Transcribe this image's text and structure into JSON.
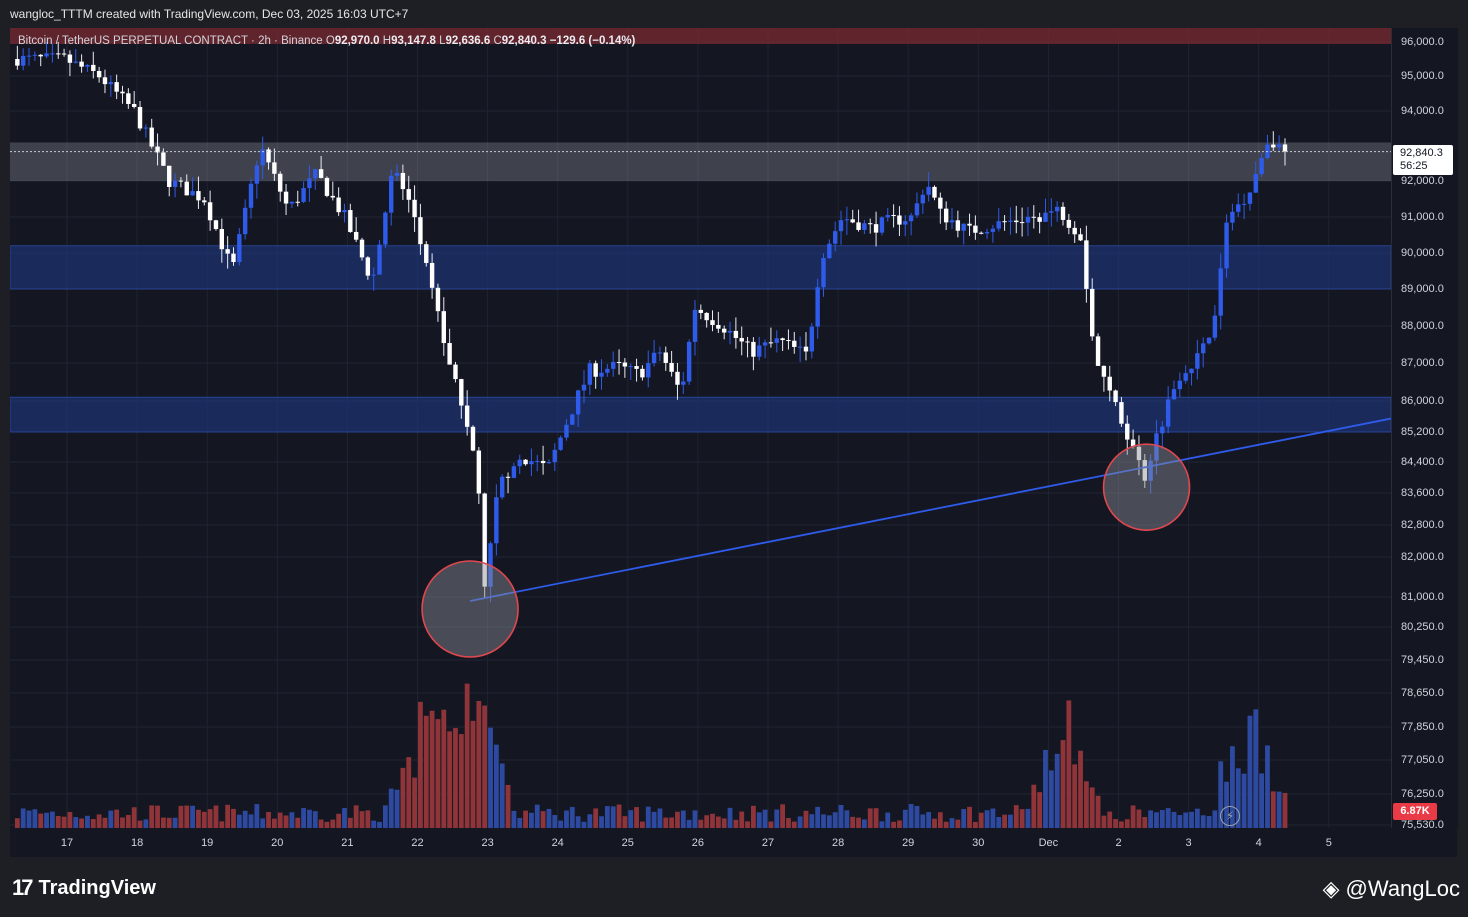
{
  "caption": "wangloc_TTTM created with TradingView.com, Dec 03, 2025 16:03 UTC+7",
  "symbol": {
    "name": "Bitcoin / TetherUS PERPETUAL CONTRACT · 2h · Binance",
    "o_label": "O",
    "o": "92,970.0",
    "h_label": "H",
    "h": "93,147.8",
    "l_label": "L",
    "l": "92,636.6",
    "c_label": "C",
    "c": "92,840.3",
    "change": "−129.6 (−0.14%)"
  },
  "last_price": {
    "price": "92,840.3",
    "countdown": "56:25"
  },
  "volume_label": "6.87K",
  "branding": {
    "logo_text": "TradingView",
    "watermark": "@WangLoc"
  },
  "colors": {
    "up": "#2f5bea",
    "down": "#ffffff",
    "zone": "#1e3a8a",
    "resistance_zone": "#b0b3bd",
    "trendline": "#2f5bea",
    "circle_stroke": "#e0474f",
    "vol_up": "#2d4aa0",
    "vol_down": "#8f3439"
  },
  "chart_data": {
    "type": "candlestick",
    "symbol": "BTCUSDT.P",
    "interval": "2h",
    "exchange": "Binance",
    "y_ticks": [
      "96,000.0",
      "95,000.0",
      "94,000.0",
      "92,000.0",
      "91,000.0",
      "90,000.0",
      "89,000.0",
      "88,000.0",
      "87,000.0",
      "86,000.0",
      "85,200.0",
      "84,400.0",
      "83,600.0",
      "82,800.0",
      "82,000.0",
      "81,000.0",
      "80,250.0",
      "79,450.0",
      "78,650.0",
      "77,850.0",
      "77,050.0",
      "76,250.0",
      "75,530.0"
    ],
    "x_ticks": [
      "17",
      "18",
      "19",
      "20",
      "21",
      "22",
      "23",
      "24",
      "25",
      "26",
      "27",
      "28",
      "29",
      "30",
      "Dec",
      "2",
      "3",
      "4",
      "5"
    ],
    "price_path": [
      [
        0,
        95500
      ],
      [
        0.5,
        95000
      ],
      [
        1,
        94000
      ],
      [
        1.5,
        92000
      ],
      [
        2,
        91500
      ],
      [
        2.4,
        89500
      ],
      [
        2.8,
        93000
      ],
      [
        3.2,
        91200
      ],
      [
        3.6,
        92200
      ],
      [
        4,
        91000
      ],
      [
        4.4,
        89200
      ],
      [
        4.7,
        92400
      ],
      [
        5,
        91000
      ],
      [
        5.3,
        88500
      ],
      [
        5.6,
        86300
      ],
      [
        5.9,
        84200
      ],
      [
        6,
        81100
      ],
      [
        6.2,
        83800
      ],
      [
        6.5,
        84600
      ],
      [
        6.9,
        84200
      ],
      [
        7.2,
        85600
      ],
      [
        7.5,
        86800
      ],
      [
        7.9,
        86900
      ],
      [
        8.2,
        86700
      ],
      [
        8.5,
        87300
      ],
      [
        8.8,
        86200
      ],
      [
        9,
        88500
      ],
      [
        9.4,
        88000
      ],
      [
        9.8,
        87300
      ],
      [
        10.2,
        87600
      ],
      [
        10.6,
        87200
      ],
      [
        10.8,
        89900
      ],
      [
        11.1,
        91000
      ],
      [
        11.5,
        90700
      ],
      [
        11.8,
        90900
      ],
      [
        12.1,
        91000
      ],
      [
        12.3,
        92000
      ],
      [
        12.5,
        91100
      ],
      [
        12.9,
        90600
      ],
      [
        13.3,
        90800
      ],
      [
        13.8,
        91000
      ],
      [
        14.2,
        91200
      ],
      [
        14.5,
        90500
      ],
      [
        14.7,
        87200
      ],
      [
        15,
        85800
      ],
      [
        15.3,
        84600
      ],
      [
        15.4,
        83950
      ],
      [
        15.6,
        85200
      ],
      [
        15.9,
        86700
      ],
      [
        16.2,
        87200
      ],
      [
        16.4,
        88000
      ],
      [
        16.6,
        91000
      ],
      [
        16.9,
        91700
      ],
      [
        17.2,
        93300
      ],
      [
        17.35,
        92840
      ]
    ],
    "resistance_zone": [
      92000,
      93100
    ],
    "support_zones": [
      [
        89000,
        90200
      ],
      [
        85200,
        86100
      ]
    ],
    "trendline": [
      [
        5.75,
        80900
      ],
      [
        17.2,
        84950
      ]
    ],
    "highlighted_lows": [
      {
        "day": 5.75,
        "price": 80700
      },
      {
        "day": 15.4,
        "price": 83750
      }
    ],
    "volume_spikes": [
      {
        "day": 5.1,
        "value": "high"
      },
      {
        "day": 5.75,
        "value": "high"
      },
      {
        "day": 14.2,
        "value": "high"
      },
      {
        "day": 16.8,
        "value": "high"
      }
    ]
  }
}
